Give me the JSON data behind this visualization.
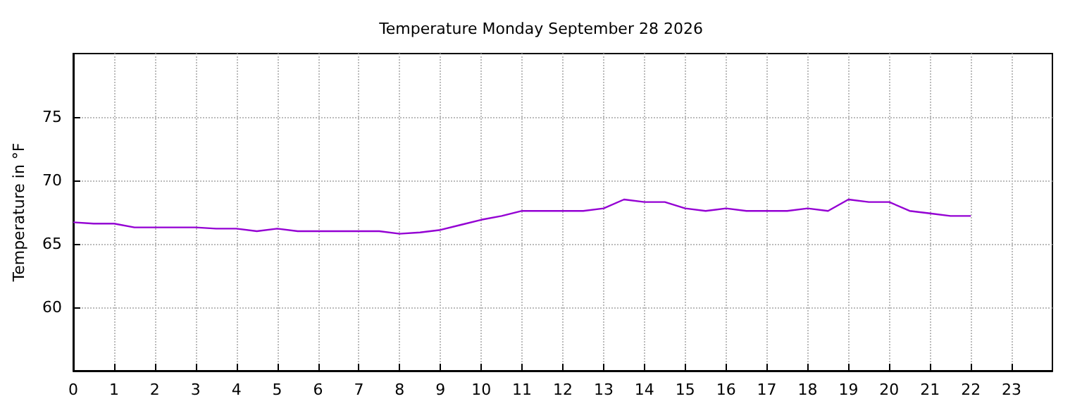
{
  "chart_data": {
    "type": "line",
    "title": "Temperature Monday September 28 2026",
    "ylabel": "Temperature in °F",
    "x": [
      0,
      0.5,
      1,
      1.5,
      2,
      2.5,
      3,
      3.5,
      4,
      4.5,
      5,
      5.5,
      6,
      6.5,
      7,
      7.5,
      8,
      8.5,
      9,
      9.5,
      10,
      10.5,
      11,
      11.5,
      12,
      12.5,
      13,
      13.5,
      14,
      14.5,
      15,
      15.5,
      16,
      16.5,
      17,
      17.5,
      18,
      18.5,
      19,
      19.5,
      20,
      20.5,
      21,
      21.5,
      22
    ],
    "series": [
      {
        "color": "#9400d3",
        "values": [
          66.7,
          66.6,
          66.6,
          66.3,
          66.3,
          66.3,
          66.3,
          66.2,
          66.2,
          66.0,
          66.2,
          66.0,
          66.0,
          66.0,
          66.0,
          66.0,
          65.8,
          65.9,
          66.1,
          66.5,
          66.9,
          67.2,
          67.6,
          67.6,
          67.6,
          67.6,
          67.8,
          68.5,
          68.3,
          68.3,
          67.8,
          67.6,
          67.8,
          67.6,
          67.6,
          67.6,
          67.8,
          67.6,
          68.5,
          68.3,
          68.3,
          67.6,
          67.4,
          67.2,
          67.2
        ]
      }
    ],
    "xlim": [
      0,
      24
    ],
    "xticks": [
      0,
      1,
      2,
      3,
      4,
      5,
      6,
      7,
      8,
      9,
      10,
      11,
      12,
      13,
      14,
      15,
      16,
      17,
      18,
      19,
      20,
      21,
      22,
      23
    ],
    "ylim": [
      55,
      80
    ],
    "yticks": [
      60,
      65,
      70,
      75
    ],
    "grid": true,
    "marker": "none",
    "line_style": "solid"
  }
}
